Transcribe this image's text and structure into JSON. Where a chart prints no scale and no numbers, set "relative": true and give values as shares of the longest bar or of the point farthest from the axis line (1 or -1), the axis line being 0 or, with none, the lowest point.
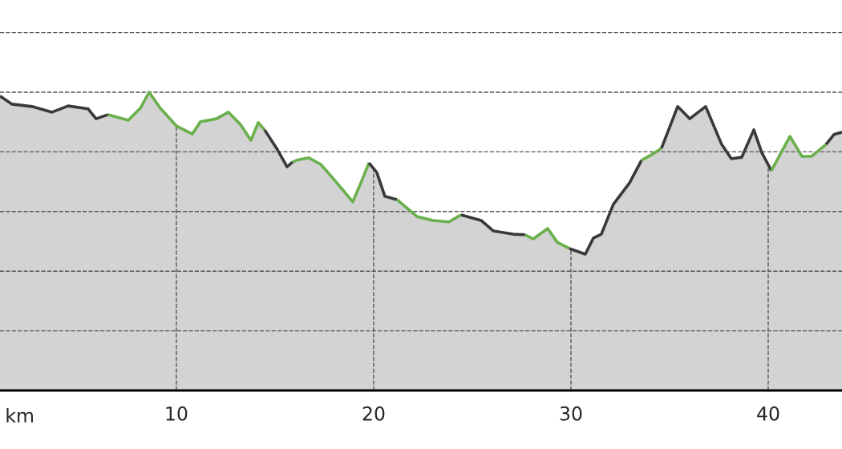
{
  "chart_data": {
    "type": "area",
    "relative": true,
    "xlabel": "km",
    "xlim": [
      1.06,
      43.74
    ],
    "xticks": [
      10,
      20,
      30,
      40
    ],
    "grid": true,
    "tick_labels": "x",
    "series": [
      {
        "color": "#3a3a3a",
        "x": [
          1.06,
          1.67,
          2.68,
          3.7,
          4.51,
          5.53,
          5.93,
          6.54
        ],
        "values": [
          0.987,
          0.96,
          0.952,
          0.933,
          0.954,
          0.944,
          0.911,
          0.925
        ]
      },
      {
        "color": "#6ab04c",
        "x": [
          6.54,
          7.56,
          8.17,
          8.62,
          9.19,
          10.0,
          10.81,
          11.22,
          12.03,
          12.64,
          13.25,
          13.78,
          14.15,
          14.47
        ],
        "values": [
          0.925,
          0.906,
          0.946,
          1,
          0.946,
          0.887,
          0.86,
          0.901,
          0.911,
          0.933,
          0.892,
          0.839,
          0.898,
          0.874
        ]
      },
      {
        "color": "#3a3a3a",
        "x": [
          14.47,
          15.08,
          15.61,
          15.89
        ],
        "values": [
          0.874,
          0.812,
          0.75,
          0.766
        ]
      },
      {
        "color": "#6ab04c",
        "x": [
          15.89,
          16.1,
          16.71,
          17.32,
          17.93,
          18.54,
          18.94,
          19.35,
          19.76
        ],
        "values": [
          0.766,
          0.772,
          0.78,
          0.758,
          0.712,
          0.664,
          0.632,
          0.696,
          0.763
        ]
      },
      {
        "color": "#3a3a3a",
        "x": [
          19.76,
          20.16,
          20.57,
          21.18
        ],
        "values": [
          0.763,
          0.731,
          0.651,
          0.64
        ]
      },
      {
        "color": "#6ab04c",
        "x": [
          21.18,
          22.2,
          23.01,
          23.82,
          24.43
        ],
        "values": [
          0.64,
          0.583,
          0.57,
          0.565,
          0.589
        ]
      },
      {
        "color": "#3a3a3a",
        "x": [
          24.43,
          25.45,
          26.06,
          27.07,
          27.68
        ],
        "values": [
          0.589,
          0.57,
          0.535,
          0.524,
          0.522
        ]
      },
      {
        "color": "#6ab04c",
        "x": [
          27.68,
          28.09,
          28.82,
          29.31,
          29.92
        ],
        "values": [
          0.522,
          0.508,
          0.543,
          0.497,
          0.476
        ]
      },
      {
        "color": "#3a3a3a",
        "x": [
          29.92,
          30.73,
          31.14,
          31.54,
          32.15,
          32.97,
          33.58
        ],
        "values": [
          0.476,
          0.457,
          0.511,
          0.524,
          0.624,
          0.696,
          0.772
        ]
      },
      {
        "color": "#6ab04c",
        "x": [
          33.58,
          34.07,
          34.59
        ],
        "values": [
          0.772,
          0.79,
          0.812
        ]
      },
      {
        "color": "#3a3a3a",
        "x": [
          34.59,
          35.41,
          36.02,
          36.83,
          37.64,
          38.13,
          38.66,
          39.27,
          39.67,
          40.16
        ],
        "values": [
          0.812,
          0.952,
          0.911,
          0.952,
          0.825,
          0.777,
          0.782,
          0.874,
          0.798,
          0.737
        ]
      },
      {
        "color": "#6ab04c",
        "x": [
          40.16,
          41.1,
          41.71,
          42.2,
          42.93
        ],
        "values": [
          0.737,
          0.852,
          0.785,
          0.785,
          0.825
        ]
      },
      {
        "color": "#3a3a3a",
        "x": [
          42.93,
          43.33,
          43.74
        ],
        "values": [
          0.825,
          0.858,
          0.866
        ]
      }
    ]
  }
}
